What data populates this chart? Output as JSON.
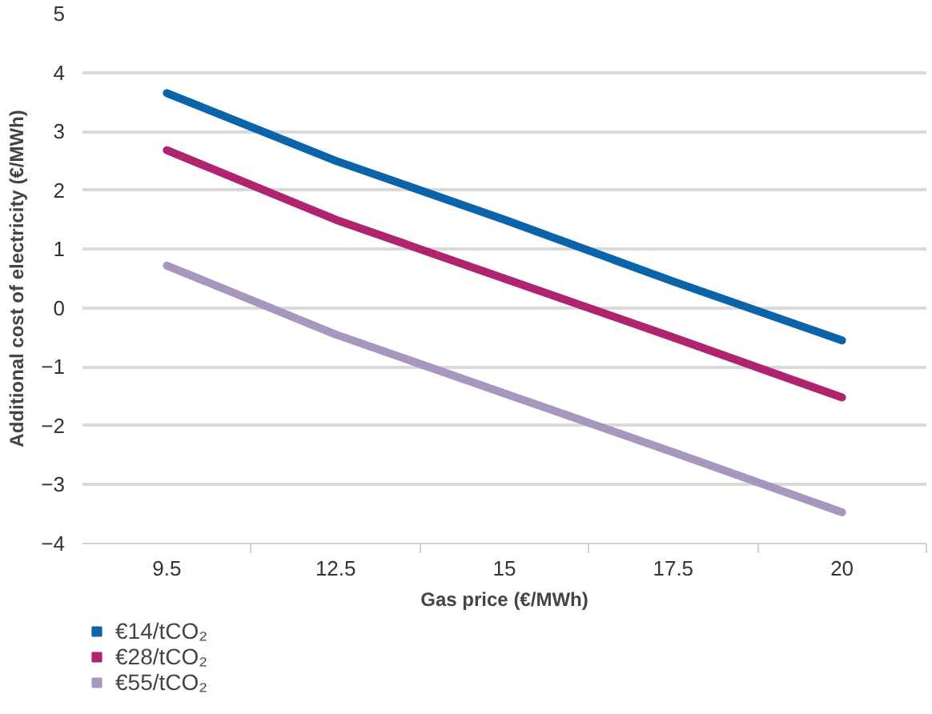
{
  "chart_data": {
    "type": "line",
    "xlabel": "Gas price (€/MWh)",
    "ylabel": "Additional cost of electricity (€/MWh)",
    "categories": [
      "9.5",
      "12.5",
      "15",
      "17.5",
      "20"
    ],
    "series": [
      {
        "name": "€14/tCO₂",
        "color": "#0b64a9",
        "values": [
          3.65,
          2.5,
          1.5,
          0.45,
          -0.55
        ]
      },
      {
        "name": "€28/tCO₂",
        "color": "#b0236e",
        "values": [
          2.68,
          1.5,
          0.5,
          -0.5,
          -1.52
        ]
      },
      {
        "name": "€55/tCO₂",
        "color": "#a797bf",
        "values": [
          0.72,
          -0.45,
          -1.45,
          -2.45,
          -3.47
        ]
      }
    ],
    "ylim": [
      -4,
      5
    ],
    "yticks": [
      -4,
      -3,
      -2,
      -1,
      0,
      1,
      2,
      3,
      4,
      5
    ],
    "grid": "y",
    "legend": "bottom left",
    "marker": "none",
    "line_style": "solid"
  }
}
